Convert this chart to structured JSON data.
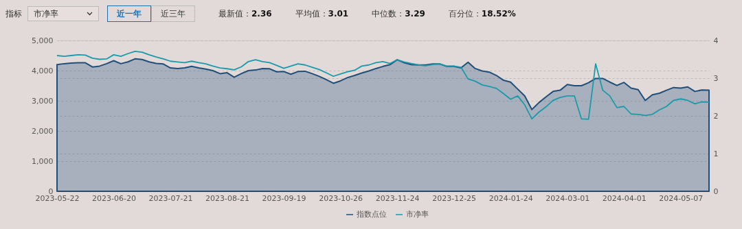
{
  "chart_data": {
    "type": "area",
    "annotations": [
      "指标",
      "市净率",
      "近一年",
      "近三年",
      "最新值：2.36",
      "平均值：3.01",
      "中位数：3.29",
      "百分位：18.52%"
    ],
    "categories": [
      "2023-05-22",
      null,
      null,
      null,
      null,
      null,
      null,
      null,
      "2023-06-20",
      null,
      null,
      null,
      null,
      null,
      null,
      null,
      "2023-07-21",
      null,
      null,
      null,
      null,
      null,
      null,
      null,
      "2023-08-21",
      null,
      null,
      null,
      null,
      null,
      null,
      null,
      "2023-09-19",
      null,
      null,
      null,
      null,
      null,
      null,
      null,
      "2023-10-26",
      null,
      null,
      null,
      null,
      null,
      null,
      null,
      "2023-11-24",
      null,
      null,
      null,
      null,
      null,
      null,
      null,
      "2023-12-25",
      null,
      null,
      null,
      null,
      null,
      null,
      null,
      "2024-01-24",
      null,
      null,
      null,
      null,
      null,
      null,
      null,
      "2024-03-01",
      null,
      null,
      null,
      null,
      null,
      null,
      null,
      "2024-04-01",
      null,
      null,
      null,
      null,
      null,
      null,
      null,
      "2024-05-07",
      null,
      null,
      null,
      null
    ],
    "series": [
      {
        "name": "指数点位",
        "color": "#1f4e79",
        "values": [
          4200,
          4230,
          4250,
          4260,
          4260,
          4120,
          4150,
          4230,
          4330,
          4230,
          4290,
          4390,
          4370,
          4290,
          4240,
          4220,
          4090,
          4070,
          4090,
          4140,
          4090,
          4050,
          4000,
          3900,
          3930,
          3780,
          3900,
          4000,
          4020,
          4070,
          4060,
          3960,
          3970,
          3880,
          3970,
          3980,
          3900,
          3810,
          3700,
          3580,
          3660,
          3770,
          3840,
          3920,
          3990,
          4070,
          4140,
          4200,
          4360,
          4260,
          4200,
          4190,
          4190,
          4220,
          4220,
          4140,
          4140,
          4090,
          4280,
          4070,
          3990,
          3950,
          3840,
          3680,
          3620,
          3390,
          3160,
          2710,
          2940,
          3130,
          3310,
          3350,
          3540,
          3500,
          3500,
          3600,
          3740,
          3740,
          3620,
          3510,
          3610,
          3420,
          3370,
          3010,
          3200,
          3250,
          3350,
          3440,
          3420,
          3460,
          3310,
          3360,
          3350
        ]
      },
      {
        "name": "市净率",
        "type": "line",
        "axis": "y2",
        "color": "#1a9aaa",
        "values": [
          3.6,
          3.58,
          3.6,
          3.62,
          3.61,
          3.53,
          3.5,
          3.51,
          3.62,
          3.58,
          3.65,
          3.71,
          3.69,
          3.62,
          3.56,
          3.51,
          3.45,
          3.43,
          3.41,
          3.45,
          3.41,
          3.38,
          3.32,
          3.27,
          3.25,
          3.22,
          3.3,
          3.44,
          3.49,
          3.44,
          3.41,
          3.34,
          3.26,
          3.32,
          3.38,
          3.35,
          3.29,
          3.23,
          3.14,
          3.05,
          3.11,
          3.17,
          3.21,
          3.32,
          3.35,
          3.41,
          3.44,
          3.39,
          3.49,
          3.43,
          3.39,
          3.35,
          3.33,
          3.36,
          3.38,
          3.32,
          3.32,
          3.29,
          2.98,
          2.92,
          2.82,
          2.78,
          2.73,
          2.59,
          2.44,
          2.53,
          2.29,
          1.92,
          2.1,
          2.24,
          2.41,
          2.49,
          2.53,
          2.53,
          1.92,
          1.91,
          3.38,
          2.68,
          2.53,
          2.22,
          2.25,
          2.05,
          2.04,
          2.01,
          2.04,
          2.16,
          2.25,
          2.41,
          2.45,
          2.41,
          2.32,
          2.37,
          2.36
        ]
      }
    ],
    "ylim": [
      0,
      5000
    ],
    "yticks": [
      0,
      {
        "value": 1000,
        "label": "1,000"
      },
      {
        "value": 2000,
        "label": "2,000"
      },
      {
        "value": 3000,
        "label": "3,000"
      },
      {
        "value": 4000,
        "label": "4,000"
      },
      {
        "value": 5000,
        "label": "5,000"
      }
    ],
    "y2lim": [
      0,
      4
    ],
    "y2ticks": [
      0,
      1,
      2,
      3,
      4
    ],
    "grid": true,
    "legend": "bottom"
  }
}
